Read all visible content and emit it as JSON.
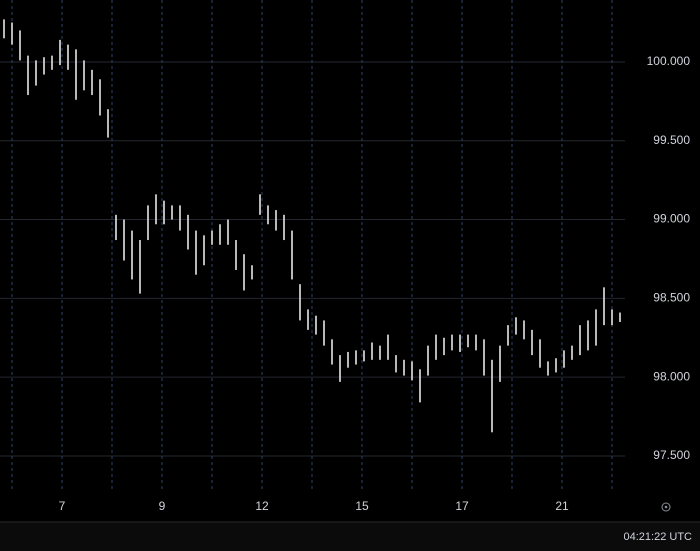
{
  "chart_data": {
    "type": "range",
    "color": "#e6e6e6",
    "x": [
      -0.16,
      0,
      0.16,
      0.32,
      0.48,
      0.64,
      0.8,
      0.96,
      1.12,
      1.28,
      1.44,
      1.6,
      1.76,
      1.92,
      2.08,
      2.24,
      2.4,
      2.56,
      2.72,
      2.88,
      3.04,
      3.2,
      3.36,
      3.52,
      3.68,
      3.84,
      4,
      4.16,
      4.32,
      4.48,
      4.64,
      4.8,
      4.96,
      5.12,
      5.28,
      5.44,
      5.6,
      5.76,
      5.92,
      6.08,
      6.24,
      6.4,
      6.56,
      6.72,
      6.88,
      7.04,
      7.2,
      7.36,
      7.52,
      7.68,
      7.84,
      8,
      8.16,
      8.32,
      8.48,
      8.64,
      8.8,
      8.96,
      9.12,
      9.28,
      9.44,
      9.6,
      9.76,
      9.92,
      10.08,
      10.24,
      10.4,
      10.56,
      10.72,
      10.88,
      11.04,
      11.2,
      11.36,
      11.52,
      11.68,
      11.84,
      12,
      12.16
    ],
    "high": [
      100.27,
      100.25,
      100.2,
      100.04,
      100.01,
      100.03,
      100.04,
      100.14,
      100.11,
      100.08,
      100.01,
      99.95,
      99.89,
      99.7,
      99.03,
      99.0,
      98.93,
      98.87,
      99.09,
      99.16,
      99.12,
      99.09,
      99.09,
      99.03,
      98.93,
      98.9,
      98.93,
      98.97,
      99.0,
      98.87,
      98.78,
      98.71,
      99.16,
      99.09,
      99.06,
      99.03,
      98.93,
      98.59,
      98.43,
      98.39,
      98.36,
      98.24,
      98.14,
      98.16,
      98.17,
      98.17,
      98.22,
      98.2,
      98.27,
      98.14,
      98.11,
      98.1,
      98.05,
      98.2,
      98.27,
      98.25,
      98.27,
      98.27,
      98.27,
      98.27,
      98.24,
      98.11,
      98.2,
      98.33,
      98.38,
      98.36,
      98.3,
      98.24,
      98.1,
      98.12,
      98.17,
      98.2,
      98.33,
      98.36,
      98.43,
      98.57,
      98.43,
      98.41
    ],
    "low": [
      100.15,
      100.11,
      100.01,
      99.79,
      99.85,
      99.92,
      99.95,
      99.98,
      99.95,
      99.76,
      99.82,
      99.79,
      99.66,
      99.52,
      98.87,
      98.74,
      98.62,
      98.53,
      98.87,
      98.97,
      98.97,
      99.0,
      98.93,
      98.81,
      98.65,
      98.71,
      98.84,
      98.84,
      98.84,
      98.68,
      98.55,
      98.62,
      99.03,
      98.97,
      98.93,
      98.87,
      98.62,
      98.36,
      98.3,
      98.27,
      98.2,
      98.08,
      97.97,
      98.06,
      98.08,
      98.1,
      98.11,
      98.11,
      98.11,
      98.03,
      98.01,
      97.98,
      97.84,
      98.01,
      98.11,
      98.14,
      98.17,
      98.16,
      98.19,
      98.17,
      98.01,
      97.65,
      97.97,
      98.2,
      98.27,
      98.24,
      98.14,
      98.06,
      98.01,
      98.03,
      98.06,
      98.11,
      98.14,
      98.17,
      98.2,
      98.33,
      98.33,
      98.35
    ],
    "xlim": [
      -0.24,
      12.26
    ],
    "ylim": [
      97.284,
      100.393
    ],
    "yticks": [
      {
        "value": 97.5,
        "label": "97.500"
      },
      {
        "value": 98,
        "label": "98.000"
      },
      {
        "value": 98.5,
        "label": "98.500"
      },
      {
        "value": 99,
        "label": "99.000"
      },
      {
        "value": 99.5,
        "label": "99.500"
      },
      {
        "value": 100,
        "label": "100.000"
      }
    ],
    "xticks": [
      {
        "value": 1,
        "label": "7"
      },
      {
        "value": 3,
        "label": "9"
      },
      {
        "value": 5,
        "label": "12"
      },
      {
        "value": 7,
        "label": "15"
      },
      {
        "value": 9,
        "label": "17"
      },
      {
        "value": 11,
        "label": "21"
      }
    ],
    "xgrid": [
      0,
      1,
      2,
      3,
      4,
      5,
      6,
      7,
      8,
      9,
      10,
      11,
      12
    ],
    "grid": true
  },
  "footer": {
    "time": "04:21:22 UTC"
  }
}
